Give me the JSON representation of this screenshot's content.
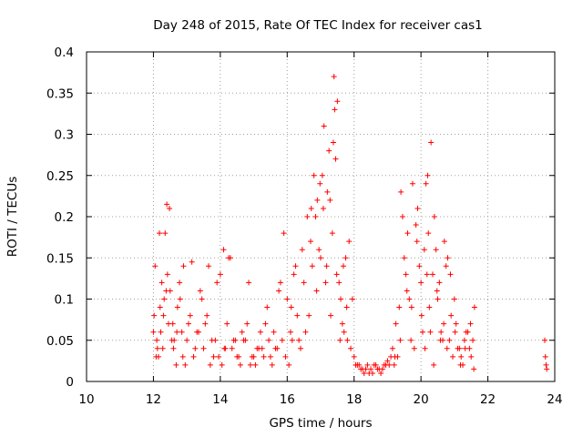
{
  "chart_data": {
    "type": "scatter",
    "title": "Day 248 of 2015, Rate Of TEC Index for receiver cas1",
    "xlabel": "GPS time / hours",
    "ylabel": "ROTI / TECUs",
    "xlim": [
      10,
      24
    ],
    "ylim": [
      0,
      0.4
    ],
    "x_ticks": [
      10,
      12,
      14,
      16,
      18,
      20,
      22,
      24
    ],
    "x_tick_labels": [
      "10",
      "12",
      "14",
      "16",
      "18",
      "20",
      "22",
      "24"
    ],
    "y_ticks": [
      0,
      0.05,
      0.1,
      0.15,
      0.2,
      0.25,
      0.3,
      0.35,
      0.4
    ],
    "y_tick_labels": [
      "0",
      "0.05",
      "0.1",
      "0.15",
      "0.2",
      "0.25",
      "0.3",
      "0.35",
      "0.4"
    ],
    "grid": true,
    "marker": "plus",
    "color": "#ff0000",
    "series": [
      {
        "name": "ROTI",
        "x": [
          12.0,
          12.05,
          12.1,
          12.15,
          12.2,
          12.25,
          12.3,
          12.35,
          12.4,
          12.45,
          12.5,
          12.55,
          12.6,
          12.7,
          12.8,
          12.9,
          13.0,
          13.1,
          13.2,
          13.3,
          13.4,
          13.5,
          13.6,
          13.7,
          13.8,
          13.9,
          14.0,
          14.1,
          14.2,
          14.3,
          14.4,
          14.5,
          14.6,
          14.7,
          14.8,
          14.9,
          15.0,
          15.1,
          15.2,
          15.3,
          15.4,
          15.5,
          15.6,
          15.7,
          15.8,
          15.9,
          16.0,
          16.1,
          16.2,
          16.3,
          16.4,
          16.5,
          16.6,
          16.7,
          16.8,
          16.9,
          17.0,
          17.1,
          17.2,
          17.3,
          17.4,
          17.5,
          17.6,
          17.7,
          17.8,
          17.9,
          18.0,
          18.1,
          18.2,
          18.3,
          18.4,
          18.5,
          18.6,
          18.7,
          18.8,
          18.9,
          19.0,
          19.1,
          19.2,
          19.3,
          19.4,
          19.5,
          19.6,
          19.7,
          19.8,
          19.9,
          20.0,
          20.1,
          20.2,
          20.3,
          20.4,
          20.5,
          20.6,
          20.7,
          20.8,
          20.9,
          21.0,
          21.1,
          21.2,
          21.3,
          21.4,
          21.5,
          21.6,
          23.7,
          23.72,
          23.74,
          23.76,
          12.02,
          12.12,
          12.22,
          12.32,
          12.42,
          12.48,
          12.62,
          12.72,
          12.85,
          12.95,
          13.15,
          13.35,
          13.55,
          13.75,
          13.95,
          14.05,
          14.15,
          14.25,
          14.45,
          14.65,
          14.85,
          15.05,
          15.25,
          15.45,
          15.65,
          15.85,
          16.05,
          16.15,
          16.25,
          16.45,
          16.65,
          16.75,
          16.85,
          16.95,
          17.05,
          17.15,
          17.25,
          17.35,
          17.38,
          17.42,
          17.45,
          17.55,
          17.65,
          17.75,
          17.85,
          17.95,
          18.15,
          18.35,
          18.55,
          18.75,
          18.95,
          19.15,
          19.25,
          19.35,
          19.45,
          19.55,
          19.65,
          19.75,
          19.85,
          19.95,
          20.05,
          20.15,
          20.22,
          20.25,
          20.35,
          20.45,
          20.55,
          20.65,
          20.75,
          20.85,
          20.95,
          21.05,
          21.15,
          21.25,
          21.35,
          21.45,
          21.55,
          12.08,
          12.18,
          12.28,
          12.38,
          12.58,
          12.68,
          12.78,
          12.88,
          13.05,
          13.25,
          13.45,
          13.65,
          13.85,
          14.12,
          14.35,
          14.55,
          14.75,
          14.95,
          15.15,
          15.35,
          15.55,
          15.75,
          15.95,
          16.12,
          16.35,
          16.55,
          16.72,
          16.88,
          16.98,
          17.08,
          17.18,
          17.28,
          17.48,
          17.58,
          17.68,
          17.78,
          18.05,
          18.25,
          18.45,
          18.65,
          18.85,
          19.05,
          19.22,
          19.38,
          19.58,
          19.72,
          19.88,
          20.02,
          20.12,
          20.18,
          20.28,
          20.38,
          20.48,
          20.58,
          20.68,
          20.78,
          20.88,
          21.02,
          21.18,
          21.32,
          21.48,
          21.58
        ],
        "y": [
          0.06,
          0.14,
          0.05,
          0.03,
          0.09,
          0.12,
          0.08,
          0.18,
          0.215,
          0.07,
          0.11,
          0.05,
          0.04,
          0.06,
          0.1,
          0.14,
          0.05,
          0.08,
          0.03,
          0.06,
          0.11,
          0.04,
          0.08,
          0.02,
          0.03,
          0.12,
          0.13,
          0.16,
          0.07,
          0.15,
          0.05,
          0.03,
          0.02,
          0.05,
          0.07,
          0.02,
          0.03,
          0.04,
          0.06,
          0.03,
          0.09,
          0.03,
          0.06,
          0.04,
          0.12,
          0.18,
          0.1,
          0.06,
          0.13,
          0.08,
          0.04,
          0.12,
          0.2,
          0.17,
          0.25,
          0.22,
          0.15,
          0.31,
          0.23,
          0.08,
          0.37,
          0.34,
          0.1,
          0.06,
          0.05,
          0.04,
          0.03,
          0.02,
          0.015,
          0.01,
          0.02,
          0.015,
          0.02,
          0.015,
          0.01,
          0.02,
          0.025,
          0.03,
          0.02,
          0.03,
          0.23,
          0.15,
          0.18,
          0.05,
          0.04,
          0.21,
          0.12,
          0.16,
          0.25,
          0.29,
          0.2,
          0.1,
          0.06,
          0.17,
          0.15,
          0.08,
          0.1,
          0.04,
          0.03,
          0.05,
          0.06,
          0.03,
          0.09,
          0.05,
          0.03,
          0.02,
          0.015,
          0.08,
          0.04,
          0.06,
          0.1,
          0.13,
          0.21,
          0.05,
          0.09,
          0.06,
          0.02,
          0.145,
          0.06,
          0.07,
          0.05,
          0.03,
          0.02,
          0.04,
          0.15,
          0.05,
          0.06,
          0.12,
          0.02,
          0.04,
          0.05,
          0.04,
          0.05,
          0.02,
          0.05,
          0.14,
          0.16,
          0.08,
          0.14,
          0.2,
          0.16,
          0.25,
          0.12,
          0.28,
          0.18,
          0.29,
          0.33,
          0.27,
          0.12,
          0.07,
          0.15,
          0.17,
          0.1,
          0.02,
          0.015,
          0.01,
          0.015,
          0.02,
          0.04,
          0.07,
          0.09,
          0.2,
          0.13,
          0.1,
          0.24,
          0.19,
          0.14,
          0.06,
          0.24,
          0.18,
          0.09,
          0.13,
          0.16,
          0.12,
          0.05,
          0.14,
          0.05,
          0.03,
          0.07,
          0.04,
          0.02,
          0.06,
          0.04,
          0.05,
          0.03,
          0.18,
          0.04,
          0.11,
          0.07,
          0.02,
          0.12,
          0.03,
          0.07,
          0.04,
          0.1,
          0.14,
          0.05,
          0.04,
          0.04,
          0.03,
          0.05,
          0.03,
          0.04,
          0.07,
          0.02,
          0.11,
          0.03,
          0.09,
          0.05,
          0.06,
          0.21,
          0.11,
          0.24,
          0.21,
          0.14,
          0.22,
          0.13,
          0.05,
          0.14,
          0.09,
          0.02,
          0.015,
          0.01,
          0.02,
          0.015,
          0.02,
          0.03,
          0.05,
          0.11,
          0.09,
          0.17,
          0.08,
          0.04,
          0.13,
          0.06,
          0.02,
          0.11,
          0.05,
          0.07,
          0.04,
          0.13,
          0.06,
          0.02,
          0.04,
          0.07,
          0.015
        ]
      }
    ]
  }
}
